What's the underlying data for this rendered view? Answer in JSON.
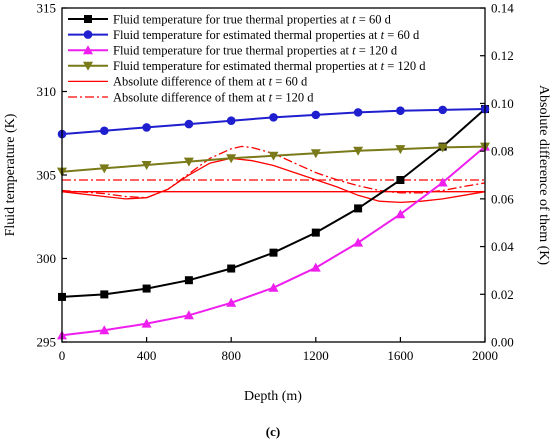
{
  "caption": "(c)",
  "chart_data": {
    "type": "line",
    "xlabel": "Depth (m)",
    "ylabel_left": "Fluid temperature (K)",
    "ylabel_right": "Absolute difference of them (K)",
    "xlim": [
      0,
      2000
    ],
    "ylim_left": [
      295,
      315
    ],
    "ylim_right": [
      0,
      0.14
    ],
    "x_ticks": [
      0,
      400,
      800,
      1200,
      1600,
      2000
    ],
    "y_ticks_left": [
      295,
      300,
      305,
      310,
      315
    ],
    "y_ticks_right": [
      "0.00",
      "0.02",
      "0.04",
      "0.06",
      "0.08",
      "0.10",
      "0.12",
      "0.14"
    ],
    "grid": false,
    "legend_position": "top-left",
    "series": [
      {
        "name": "Fluid temperature for true thermal properties at t = 60 d",
        "axis": "left",
        "color": "#000000",
        "marker": "square",
        "line": "solid",
        "x": [
          0,
          200,
          400,
          600,
          800,
          1000,
          1200,
          1400,
          1600,
          1800,
          2000
        ],
        "y": [
          297.7,
          297.85,
          298.2,
          298.7,
          299.4,
          300.35,
          301.55,
          303.0,
          304.7,
          306.7,
          308.95
        ]
      },
      {
        "name": "Fluid temperature for estimated thermal properties at t = 60 d",
        "axis": "left",
        "color": "#1f1fcf",
        "marker": "circle",
        "line": "solid",
        "x": [
          0,
          200,
          400,
          600,
          800,
          1000,
          1200,
          1400,
          1600,
          1800,
          2000
        ],
        "y": [
          307.45,
          307.65,
          307.85,
          308.05,
          308.25,
          308.45,
          308.6,
          308.75,
          308.85,
          308.9,
          308.95
        ]
      },
      {
        "name": "Fluid temperature for true thermal properties at t = 120 d",
        "axis": "left",
        "color": "#ee1fee",
        "marker": "triangle-up",
        "line": "solid",
        "x": [
          0,
          200,
          400,
          600,
          800,
          1000,
          1200,
          1400,
          1600,
          1800,
          2000
        ],
        "y": [
          295.4,
          295.7,
          296.1,
          296.6,
          297.35,
          298.25,
          299.45,
          300.95,
          302.65,
          304.55,
          306.7
        ]
      },
      {
        "name": "Fluid temperature for estimated thermal properties at t = 120 d",
        "axis": "left",
        "color": "#7a7a1a",
        "marker": "triangle-down",
        "line": "solid",
        "x": [
          0,
          200,
          400,
          600,
          800,
          1000,
          1200,
          1400,
          1600,
          1800,
          2000
        ],
        "y": [
          305.2,
          305.4,
          305.6,
          305.8,
          306.0,
          306.15,
          306.3,
          306.45,
          306.55,
          306.65,
          306.7
        ]
      },
      {
        "name": "Absolute difference of them at t = 60 d",
        "axis": "right",
        "color": "#ff0000",
        "marker": "none",
        "line": "solid",
        "x": [
          0,
          200,
          300,
          400,
          500,
          600,
          700,
          800,
          900,
          1000,
          1100,
          1200,
          1300,
          1400,
          1500,
          1600,
          1700,
          1800,
          1900,
          2000
        ],
        "y": [
          0.063,
          0.061,
          0.06,
          0.0605,
          0.064,
          0.07,
          0.075,
          0.077,
          0.076,
          0.074,
          0.071,
          0.068,
          0.065,
          0.0615,
          0.059,
          0.0585,
          0.059,
          0.06,
          0.0615,
          0.063
        ]
      },
      {
        "name": "Absolute difference of them at t = 120 d",
        "axis": "right",
        "color": "#ff0000",
        "marker": "none",
        "line": "dash-dot",
        "x": [
          0,
          200,
          300,
          400,
          500,
          600,
          700,
          800,
          850,
          900,
          1000,
          1100,
          1200,
          1300,
          1400,
          1500,
          1600,
          1700,
          1800,
          1900,
          2000
        ],
        "y": [
          0.0635,
          0.0622,
          0.061,
          0.0605,
          0.064,
          0.0705,
          0.077,
          0.081,
          0.082,
          0.0815,
          0.079,
          0.075,
          0.071,
          0.068,
          0.0655,
          0.0635,
          0.0625,
          0.0625,
          0.0635,
          0.0652,
          0.0667
        ]
      }
    ],
    "reference_lines": [
      {
        "axis": "left",
        "color": "#ff0000",
        "line": "solid",
        "y": 304.0
      },
      {
        "axis": "left",
        "color": "#ff0000",
        "line": "dash-dot",
        "y": 304.7
      }
    ]
  }
}
